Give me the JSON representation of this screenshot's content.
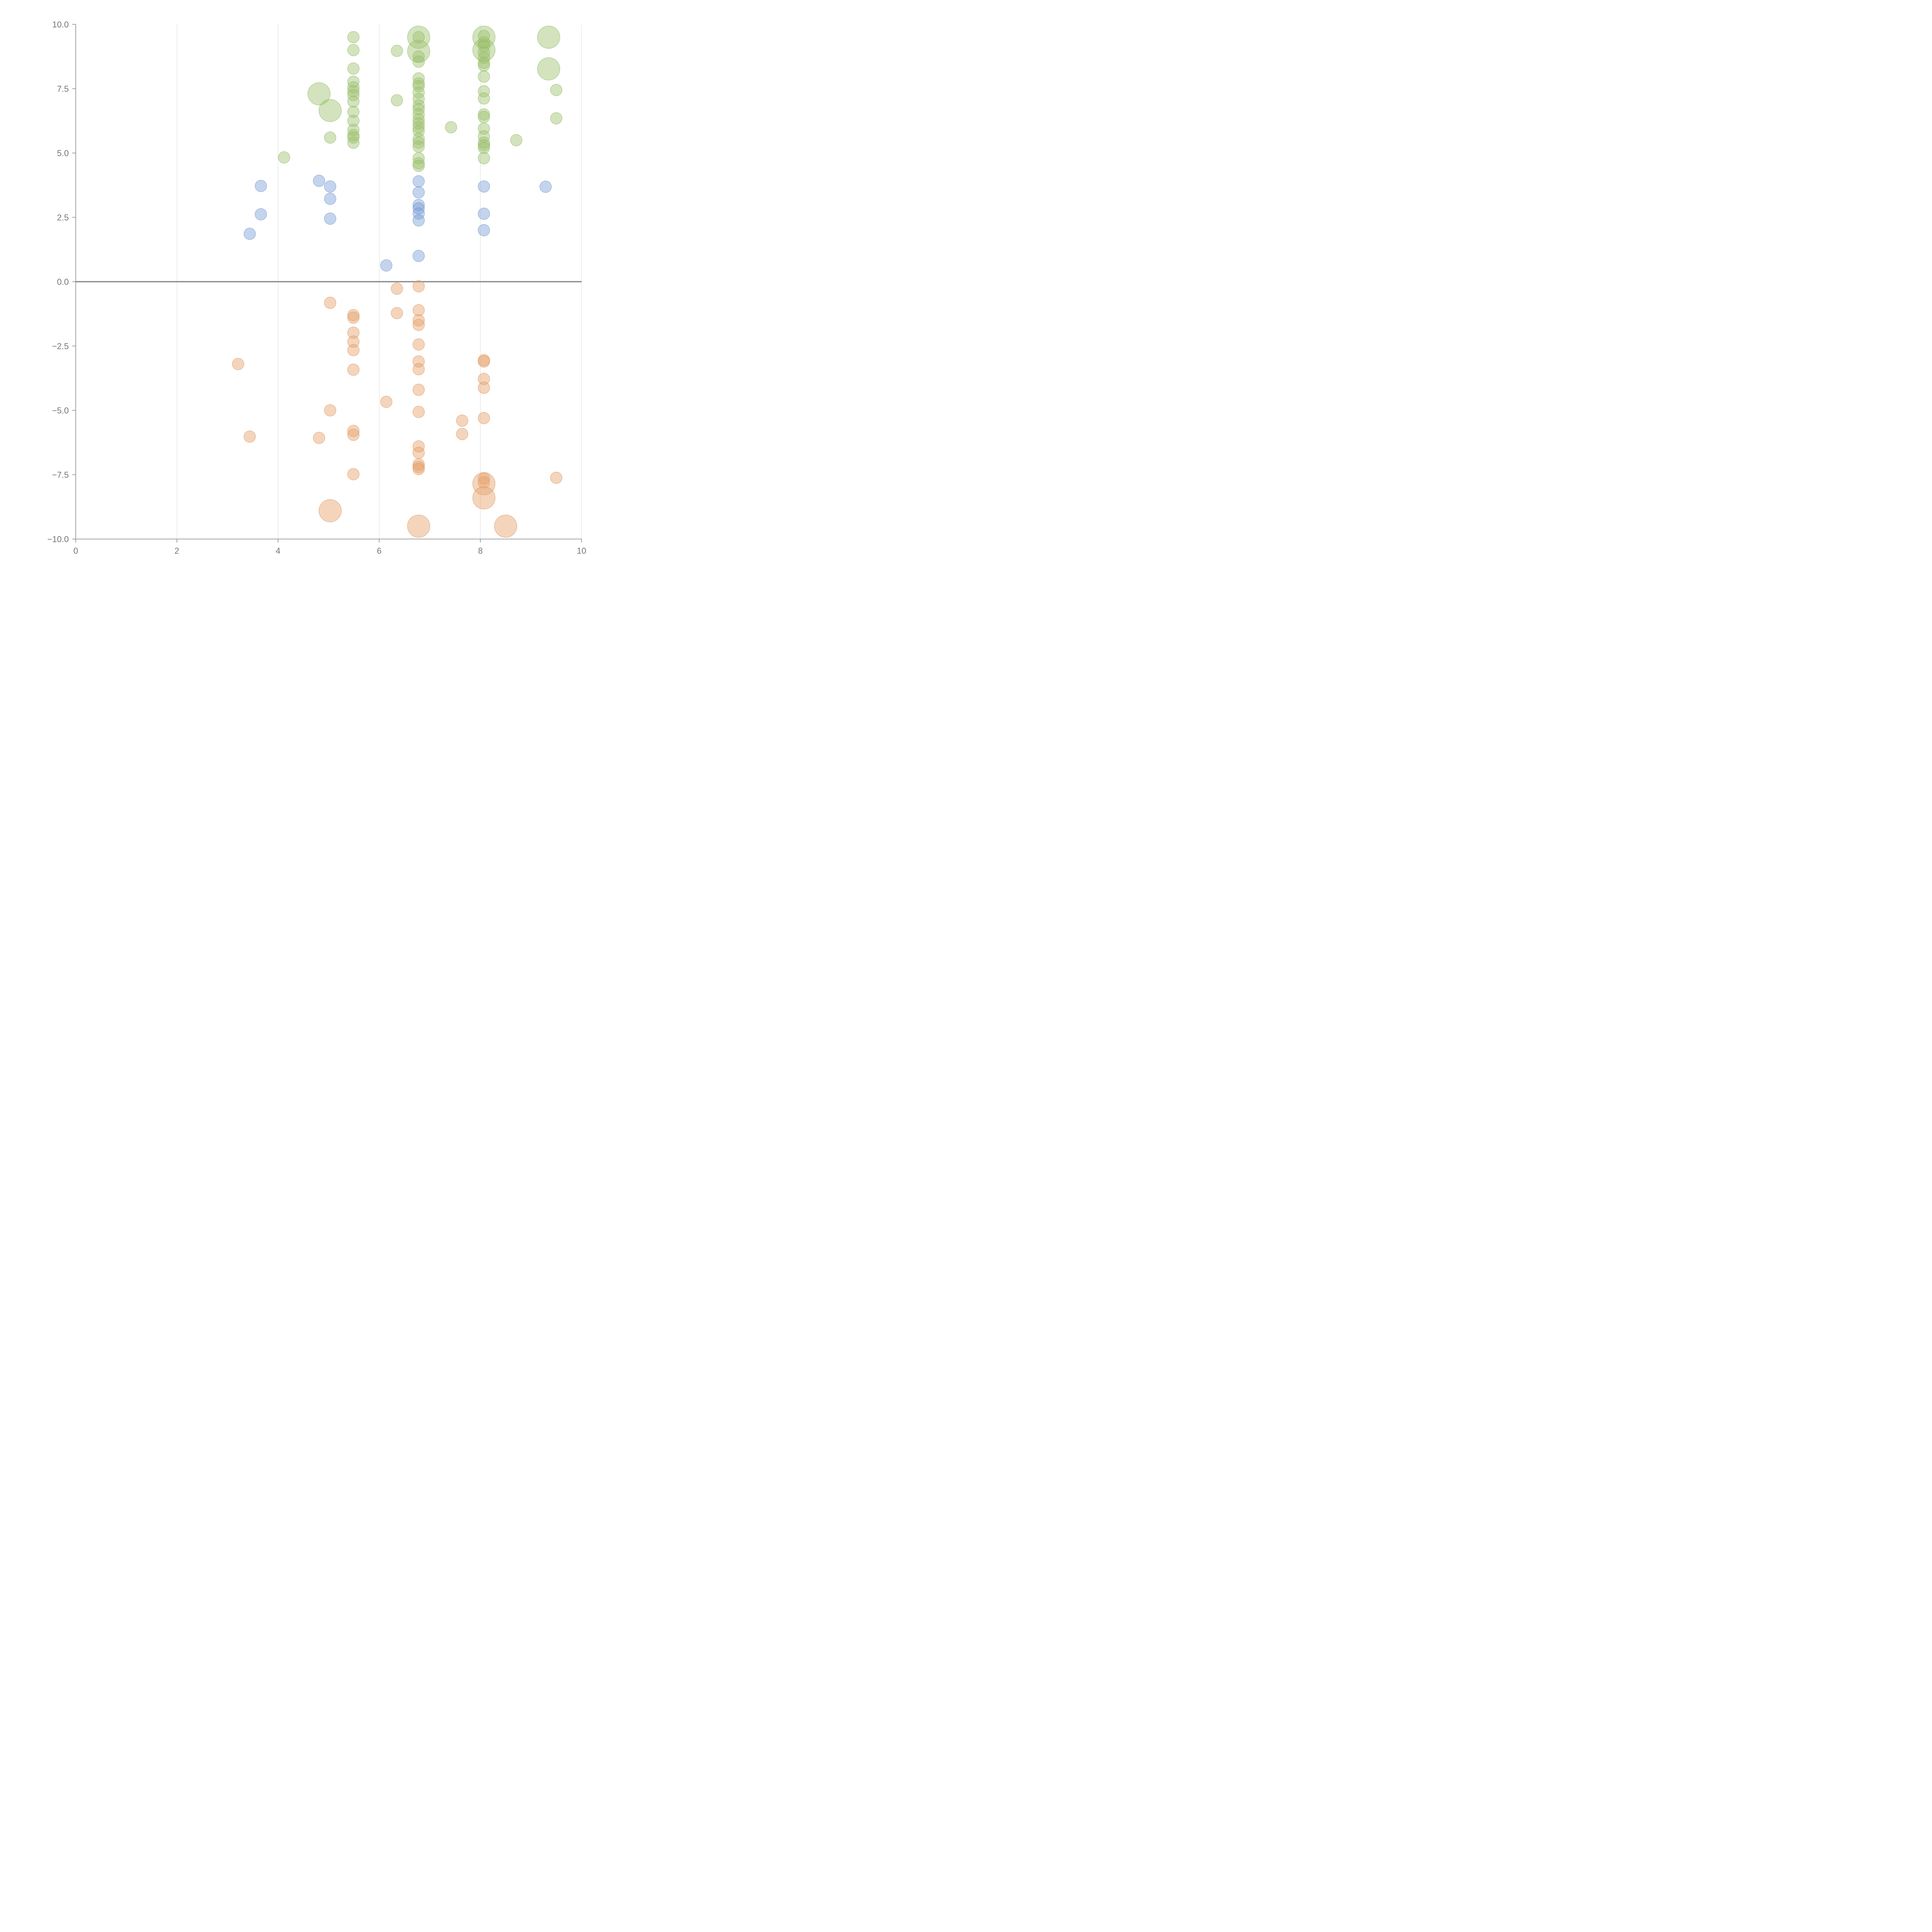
{
  "chart_data": {
    "type": "scatter",
    "title": "",
    "xlabel": "",
    "ylabel": "",
    "xlim": [
      0,
      10
    ],
    "ylim": [
      -10,
      10
    ],
    "x_ticks": [
      0,
      2,
      4,
      6,
      8,
      10
    ],
    "x_tick_labels": [
      "0",
      "2",
      "4",
      "6",
      "8",
      "10"
    ],
    "y_ticks": [
      10,
      7.5,
      5,
      2.5,
      0,
      -2.5,
      -5,
      -7.5,
      -10
    ],
    "y_tick_labels": [
      "10.0",
      "7.5",
      "5.0",
      "2.5",
      "0.0",
      "−2.5",
      "−5.0",
      "−7.5",
      "−10.0"
    ],
    "vertical_grid": true,
    "horizontal_grid": false,
    "zero_line": true,
    "legend": "none",
    "series": [
      {
        "color": "#9dc26f",
        "stroke": "#8fb860",
        "points": [
          [
            4.12,
            4.83,
            1
          ],
          [
            5.03,
            5.6,
            1
          ],
          [
            4.81,
            7.3,
            3
          ],
          [
            5.03,
            6.65,
            3
          ],
          [
            5.49,
            9.5,
            1
          ],
          [
            5.49,
            9.0,
            1
          ],
          [
            5.49,
            8.28,
            1
          ],
          [
            5.49,
            7.77,
            1
          ],
          [
            5.49,
            7.55,
            1
          ],
          [
            5.49,
            7.4,
            1
          ],
          [
            5.49,
            7.25,
            1
          ],
          [
            5.49,
            7.0,
            1
          ],
          [
            5.49,
            6.6,
            1
          ],
          [
            5.49,
            6.25,
            1
          ],
          [
            5.49,
            5.9,
            1
          ],
          [
            5.49,
            5.7,
            1
          ],
          [
            5.49,
            5.6,
            1
          ],
          [
            5.49,
            5.4,
            1
          ],
          [
            6.35,
            8.97,
            1
          ],
          [
            6.35,
            7.05,
            1
          ],
          [
            6.78,
            9.5,
            3
          ],
          [
            6.78,
            8.95,
            3
          ],
          [
            6.78,
            9.5,
            1
          ],
          [
            6.78,
            8.75,
            1
          ],
          [
            6.78,
            8.55,
            1
          ],
          [
            6.78,
            7.9,
            1
          ],
          [
            6.78,
            7.7,
            1
          ],
          [
            6.78,
            7.6,
            1
          ],
          [
            6.78,
            7.35,
            1
          ],
          [
            6.78,
            7.1,
            1
          ],
          [
            6.78,
            6.85,
            1
          ],
          [
            6.78,
            6.7,
            1
          ],
          [
            6.78,
            6.5,
            1
          ],
          [
            6.78,
            6.3,
            1
          ],
          [
            6.78,
            6.15,
            1
          ],
          [
            6.78,
            6.0,
            1
          ],
          [
            6.78,
            5.85,
            1
          ],
          [
            6.78,
            5.55,
            1
          ],
          [
            6.78,
            5.4,
            1
          ],
          [
            6.78,
            5.25,
            1
          ],
          [
            6.78,
            4.8,
            1
          ],
          [
            6.78,
            4.6,
            1
          ],
          [
            6.78,
            4.5,
            1
          ],
          [
            7.42,
            6.0,
            1
          ],
          [
            8.07,
            9.5,
            3
          ],
          [
            8.07,
            9.0,
            3
          ],
          [
            8.07,
            9.55,
            1
          ],
          [
            8.07,
            9.3,
            1
          ],
          [
            8.07,
            9.15,
            1
          ],
          [
            8.07,
            8.9,
            1
          ],
          [
            8.07,
            8.7,
            1
          ],
          [
            8.07,
            8.5,
            1
          ],
          [
            8.07,
            8.4,
            1
          ],
          [
            8.07,
            7.97,
            1
          ],
          [
            8.07,
            7.4,
            1
          ],
          [
            8.07,
            7.12,
            1
          ],
          [
            8.07,
            6.5,
            1
          ],
          [
            8.07,
            6.4,
            1
          ],
          [
            8.07,
            5.95,
            1
          ],
          [
            8.07,
            5.65,
            1
          ],
          [
            8.07,
            5.4,
            1
          ],
          [
            8.07,
            5.3,
            1
          ],
          [
            8.07,
            5.2,
            1
          ],
          [
            8.07,
            4.8,
            1
          ],
          [
            8.71,
            5.5,
            1
          ],
          [
            9.35,
            9.5,
            3
          ],
          [
            9.35,
            8.27,
            3
          ],
          [
            9.5,
            7.45,
            1
          ],
          [
            9.5,
            6.35,
            1
          ]
        ]
      },
      {
        "color": "#7da0d8",
        "stroke": "#6f93cc",
        "points": [
          [
            3.44,
            1.86,
            1
          ],
          [
            3.66,
            3.72,
            1
          ],
          [
            3.66,
            2.62,
            1
          ],
          [
            4.81,
            3.92,
            1
          ],
          [
            5.03,
            3.7,
            1
          ],
          [
            5.03,
            3.22,
            1
          ],
          [
            5.03,
            2.45,
            1
          ],
          [
            6.14,
            0.63,
            1
          ],
          [
            6.78,
            3.9,
            1
          ],
          [
            6.78,
            3.47,
            1
          ],
          [
            6.78,
            2.98,
            1
          ],
          [
            6.78,
            2.85,
            1
          ],
          [
            6.78,
            2.65,
            1
          ],
          [
            6.78,
            2.38,
            1
          ],
          [
            6.78,
            1.0,
            1
          ],
          [
            8.07,
            3.7,
            1
          ],
          [
            8.07,
            2.64,
            1
          ],
          [
            8.07,
            2.0,
            1
          ],
          [
            9.29,
            3.69,
            1
          ]
        ]
      },
      {
        "color": "#e7a26b",
        "stroke": "#d99460",
        "points": [
          [
            3.21,
            -3.2,
            1
          ],
          [
            3.44,
            -6.02,
            1
          ],
          [
            4.81,
            -6.07,
            1
          ],
          [
            5.03,
            -0.82,
            1
          ],
          [
            5.03,
            -5.0,
            1
          ],
          [
            5.03,
            -8.9,
            3
          ],
          [
            5.49,
            -1.3,
            1
          ],
          [
            5.49,
            -1.4,
            1
          ],
          [
            5.49,
            -1.98,
            1
          ],
          [
            5.49,
            -2.33,
            1
          ],
          [
            5.49,
            -2.66,
            1
          ],
          [
            5.49,
            -3.42,
            1
          ],
          [
            5.49,
            -5.8,
            1
          ],
          [
            5.49,
            -5.95,
            1
          ],
          [
            5.49,
            -7.48,
            1
          ],
          [
            6.14,
            -4.67,
            1
          ],
          [
            6.35,
            -0.27,
            1
          ],
          [
            6.35,
            -1.22,
            1
          ],
          [
            6.78,
            -0.18,
            1
          ],
          [
            6.78,
            -1.11,
            1
          ],
          [
            6.78,
            -1.5,
            1
          ],
          [
            6.78,
            -1.68,
            1
          ],
          [
            6.78,
            -2.44,
            1
          ],
          [
            6.78,
            -3.1,
            1
          ],
          [
            6.78,
            -3.4,
            1
          ],
          [
            6.78,
            -4.2,
            1
          ],
          [
            6.78,
            -5.06,
            1
          ],
          [
            6.78,
            -6.4,
            1
          ],
          [
            6.78,
            -6.65,
            1
          ],
          [
            6.78,
            -7.1,
            1
          ],
          [
            6.78,
            -7.2,
            1
          ],
          [
            6.78,
            -7.28,
            1
          ],
          [
            6.78,
            -9.5,
            3
          ],
          [
            7.64,
            -5.4,
            1
          ],
          [
            7.64,
            -5.92,
            1
          ],
          [
            8.07,
            -3.05,
            1
          ],
          [
            8.07,
            -3.1,
            1
          ],
          [
            8.07,
            -3.78,
            1
          ],
          [
            8.07,
            -4.12,
            1
          ],
          [
            8.07,
            -5.3,
            1
          ],
          [
            8.07,
            -7.65,
            1
          ],
          [
            8.07,
            -7.8,
            1
          ],
          [
            8.07,
            -7.85,
            3
          ],
          [
            8.07,
            -8.4,
            3
          ],
          [
            8.5,
            -9.5,
            3
          ],
          [
            9.5,
            -7.62,
            1
          ]
        ]
      }
    ]
  }
}
